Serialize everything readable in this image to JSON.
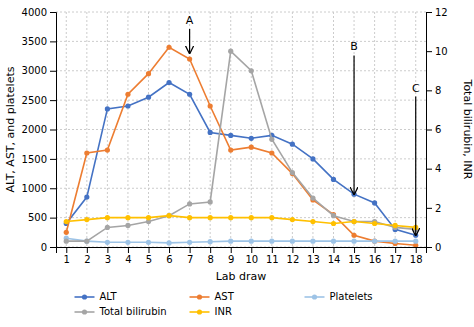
{
  "chart_data": {
    "type": "line",
    "x": [
      1,
      2,
      3,
      4,
      5,
      6,
      7,
      8,
      9,
      10,
      11,
      12,
      13,
      14,
      15,
      16,
      17,
      18
    ],
    "xlabel": "Lab draw",
    "ylabel": "ALT, AST, and platelets",
    "y2label": "Total bilirubin, INR",
    "xlim": [
      0.5,
      18.5
    ],
    "xticks": [
      1,
      2,
      3,
      4,
      5,
      6,
      7,
      8,
      9,
      10,
      11,
      12,
      13,
      14,
      15,
      16,
      17,
      18
    ],
    "ylim": [
      0,
      4000
    ],
    "yticks": [
      0,
      500,
      1000,
      1500,
      2000,
      2500,
      3000,
      3500,
      4000
    ],
    "y2lim": [
      0,
      12
    ],
    "y2ticks": [
      0,
      2,
      4,
      6,
      8,
      10,
      12
    ],
    "grid": true,
    "legend": "bottom",
    "series": [
      {
        "name": "ALT",
        "color": "#4472C4",
        "marker": "circle",
        "values": [
          400,
          850,
          2350,
          2400,
          2550,
          2800,
          2600,
          1950,
          1900,
          1850,
          1900,
          1750,
          1500,
          1150,
          900,
          750,
          300,
          200
        ]
      },
      {
        "name": "AST",
        "color": "#ED7D31",
        "marker": "circle",
        "values": [
          250,
          1600,
          1650,
          2600,
          2950,
          3400,
          3200,
          2400,
          1650,
          1700,
          1600,
          1250,
          800,
          550,
          200,
          100,
          60,
          30
        ]
      },
      {
        "name": "Platelets",
        "color": "#9DC3E6",
        "marker": "circle",
        "values": [
          150,
          100,
          80,
          80,
          80,
          70,
          80,
          90,
          100,
          100,
          100,
          100,
          100,
          100,
          100,
          100,
          100,
          100
        ]
      },
      {
        "name": "Total bilirubin",
        "color": "#A5A5A5",
        "marker": "circle",
        "axis": "y2",
        "values": [
          0.3,
          0.3,
          1.0,
          1.1,
          1.3,
          1.6,
          2.2,
          2.3,
          10.0,
          9.0,
          5.5,
          3.8,
          2.5,
          1.6,
          1.3,
          1.3,
          1.0,
          0.9
        ]
      },
      {
        "name": "INR",
        "color": "#FFC000",
        "marker": "circle",
        "axis": "y2",
        "values": [
          1.3,
          1.4,
          1.5,
          1.5,
          1.5,
          1.6,
          1.5,
          1.5,
          1.5,
          1.5,
          1.5,
          1.4,
          1.3,
          1.2,
          1.3,
          1.2,
          1.1,
          1.0
        ]
      }
    ],
    "annotations": [
      {
        "text": "A",
        "x": 7,
        "y": 3300,
        "text_y": 3950
      },
      {
        "text": "B",
        "x": 15,
        "y": 900,
        "text_y": 3500
      },
      {
        "text": "C",
        "x": 18,
        "y": 200,
        "text_y": 2800
      }
    ]
  }
}
